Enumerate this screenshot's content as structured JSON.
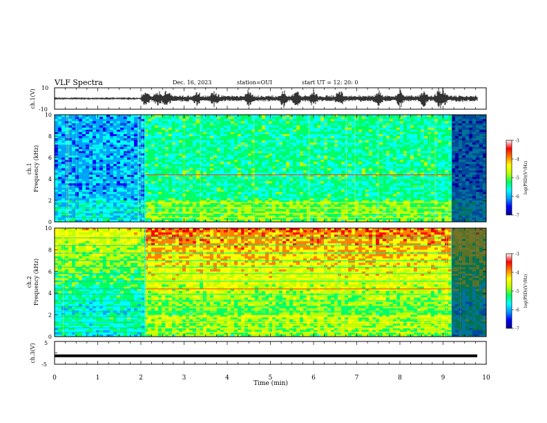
{
  "header": {
    "title": "VLF Spectra",
    "date": "Dec. 16, 2023",
    "station": "station=OUI",
    "start": "start  UT =   12: 20: 0"
  },
  "chart_data": [
    {
      "type": "line",
      "panel": "ch1-waveform",
      "ylabel": "ch.1(V)",
      "ylim": [
        -10,
        10
      ],
      "yticks": [
        10,
        -10
      ],
      "xlim": [
        0,
        10
      ],
      "bursts_min": [
        2.1,
        2.4,
        2.6,
        3.3,
        3.7,
        4.5,
        5.3,
        5.6,
        6.0,
        6.6,
        7.5,
        8.0,
        8.55,
        8.9,
        9.0
      ]
    },
    {
      "type": "heatmap",
      "panel": "ch1-spectrogram",
      "ylabel": "ch.1",
      "ylabel2": "Frequency  (kHz)",
      "ylim": [
        0,
        10
      ],
      "yticks": [
        0,
        2,
        4,
        6,
        8,
        10
      ],
      "xlim": [
        0,
        10
      ],
      "xlabel": "Time  (min)",
      "onset_min": 2.1,
      "end_min": 9.2,
      "colorbar": {
        "label": "log(PSD)(V²/Hz)",
        "ticks": [
          "-3",
          "-4",
          "-5",
          "-6",
          "-7"
        ],
        "range": [
          -7,
          -3
        ],
        "colors": [
          "#00008c",
          "#0000ff",
          "#00a0ff",
          "#00ffff",
          "#00ff60",
          "#c0ff00",
          "#ffff00",
          "#ff8000",
          "#ff0000",
          "#ffffff"
        ]
      }
    },
    {
      "type": "heatmap",
      "panel": "ch2-spectrogram",
      "ylabel": "ch.2",
      "ylabel2": "Frequency  (kHz)",
      "ylim": [
        0,
        10
      ],
      "yticks": [
        0,
        2,
        4,
        6,
        8,
        10
      ],
      "xlim": [
        0,
        10
      ],
      "onset_min": 2.1,
      "end_min": 9.2,
      "colorbar": {
        "label": "log(PSD)(V²/Hz)",
        "ticks": [
          "-3",
          "-4",
          "-5",
          "-6",
          "-7"
        ],
        "range": [
          -7,
          -3
        ]
      }
    },
    {
      "type": "line",
      "panel": "ch3-waveform",
      "ylabel": "ch.3(V)",
      "ylim": [
        -5,
        5
      ],
      "yticks": [
        5,
        0,
        -5
      ],
      "xlim": [
        0,
        10
      ],
      "level_V": -1.3,
      "xticks": [
        "0",
        "1",
        "2",
        "3",
        "4",
        "5",
        "6",
        "7",
        "8",
        "9",
        "10"
      ],
      "xlabel": "Time  (min)"
    }
  ]
}
